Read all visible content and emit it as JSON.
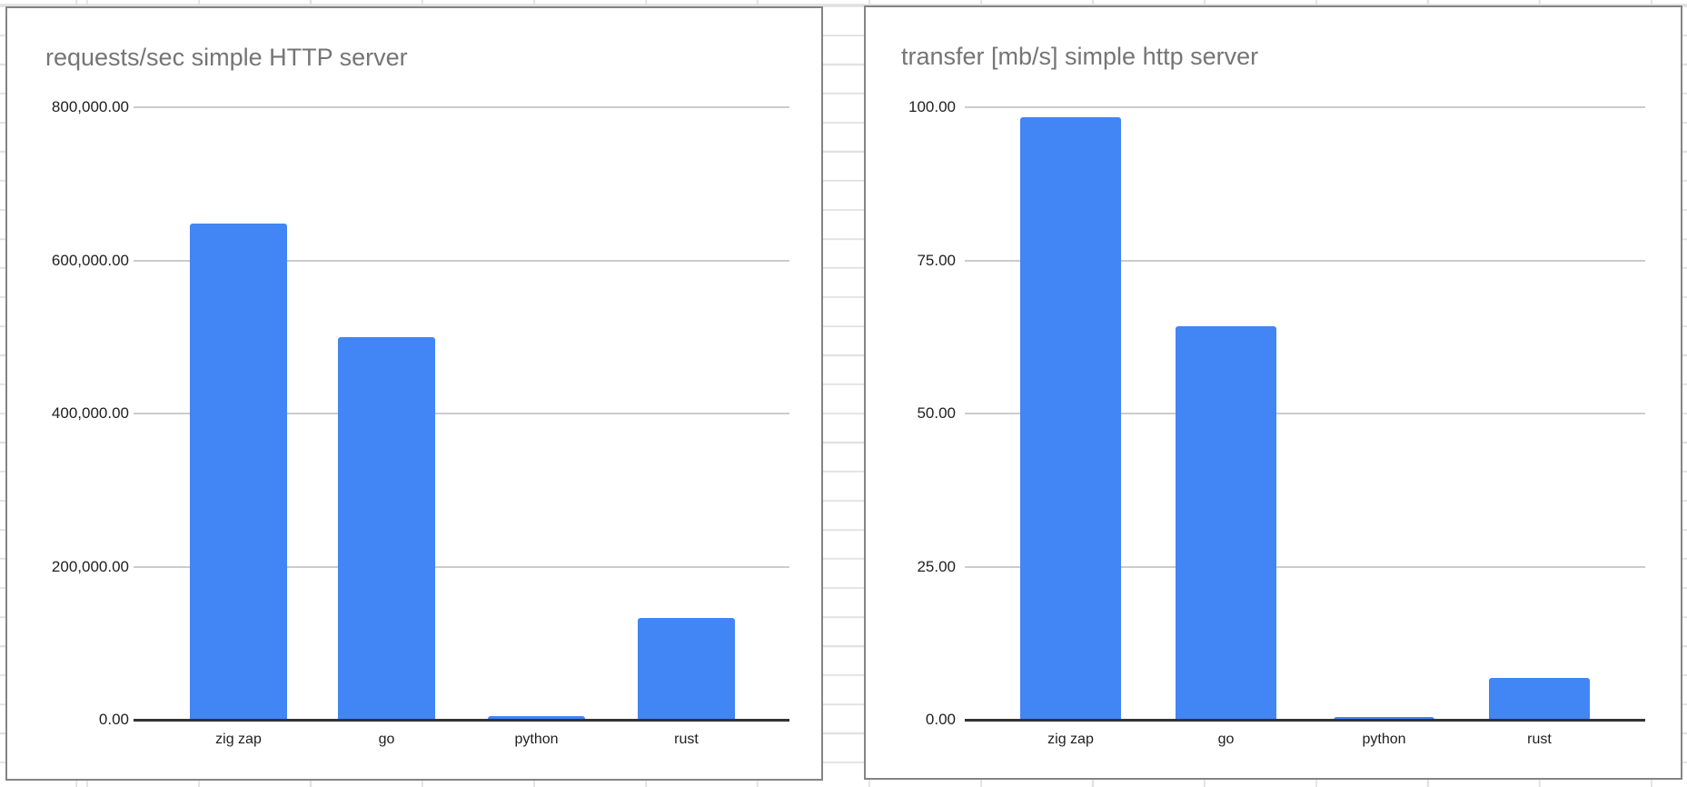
{
  "colors": {
    "bar_blue": "#4285F4",
    "chart_title": "#757575",
    "axis_label": "#1f1f1f",
    "chart_gridline": "#cccccc",
    "axis_line": "#333333",
    "chart_border": "#848484",
    "sheet_gridline": "#e2e2e2",
    "background": "#ffffff"
  },
  "chart_data": [
    {
      "type": "bar",
      "title": "requests/sec simple HTTP server",
      "categories": [
        "zig zap",
        "go",
        "python",
        "rust"
      ],
      "values": [
        648000,
        500000,
        5000,
        133000
      ],
      "ylim": [
        0,
        800000
      ],
      "yticks": [
        "800,000.00",
        "600,000.00",
        "400,000.00",
        "200,000.00",
        "0.00"
      ],
      "ytick_values": [
        800000,
        600000,
        400000,
        200000,
        0
      ],
      "xlabel": "",
      "ylabel": "",
      "grid": true,
      "legend": "none",
      "bar_color": "#4285F4"
    },
    {
      "type": "bar",
      "title": "transfer [mb/s] simple http server",
      "categories": [
        "zig zap",
        "go",
        "python",
        "rust"
      ],
      "values": [
        98.4,
        64.2,
        0.5,
        6.8
      ],
      "ylim": [
        0,
        100
      ],
      "yticks": [
        "100.00",
        "75.00",
        "50.00",
        "25.00",
        "0.00"
      ],
      "ytick_values": [
        100,
        75,
        50,
        25,
        0
      ],
      "xlabel": "",
      "ylabel": "",
      "grid": true,
      "legend": "none",
      "bar_color": "#4285F4"
    }
  ]
}
